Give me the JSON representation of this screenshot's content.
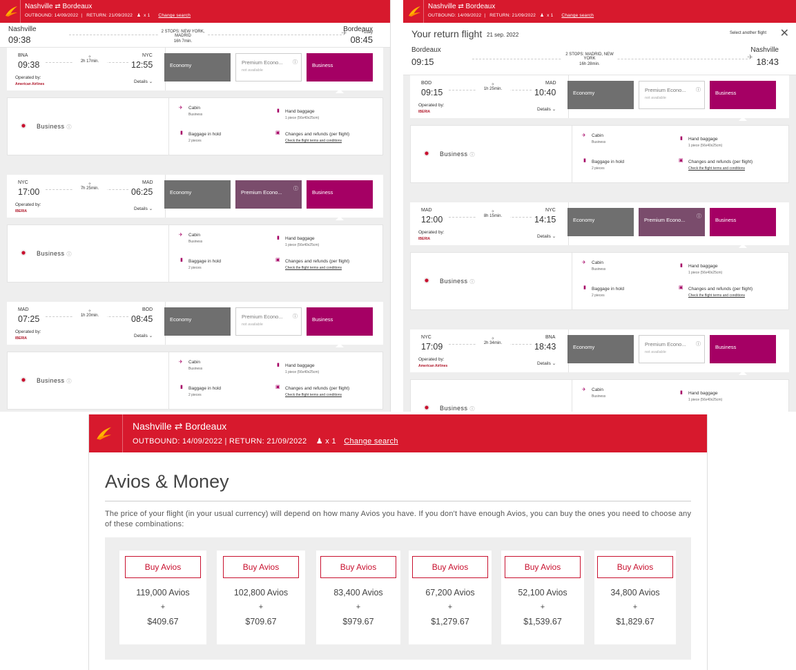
{
  "header": {
    "route": "Nashville ⇄ Bordeaux",
    "outbound": "OUTBOUND: 14/09/2022",
    "return": "RETURN: 21/09/2022",
    "pax": "x 1",
    "change": "Change search"
  },
  "outbound": {
    "from_city": "Nashville",
    "from_time": "09:38",
    "stops": "2 STOPS: NEW YORK, MADRID",
    "total": "16h 7min.",
    "to_city": "Bordeaux",
    "to_time": "08:45",
    "plus_day": "+1day",
    "segments": [
      {
        "c1": "BNA",
        "t1": "09:38",
        "dur": "2h 17min.",
        "c2": "NYC",
        "t2": "12:55",
        "op_label": "Operated by:",
        "op": "American Airlines",
        "details": "Details",
        "eco": "Economy",
        "prem": "Premium Econo...",
        "prem_na": "not available",
        "bus": "Business"
      },
      {
        "c1": "NYC",
        "t1": "17:00",
        "dur": "7h 25min.",
        "c2": "MAD",
        "t2": "06:25",
        "op_label": "Operated by:",
        "op": "IBERIA",
        "details": "Details",
        "eco": "Economy",
        "prem": "Premium Econo...",
        "prem_na": "",
        "bus": "Business"
      },
      {
        "c1": "MAD",
        "t1": "07:25",
        "dur": "1h 20min.",
        "c2": "BOD",
        "t2": "08:45",
        "op_label": "Operated by:",
        "op": "IBERIA",
        "details": "Details",
        "eco": "Economy",
        "prem": "Premium Econo...",
        "prem_na": "not available",
        "bus": "Business"
      }
    ]
  },
  "fare_box": {
    "class": "Business",
    "cabin": "Cabin",
    "cabin_sub": "Business",
    "hand": "Hand baggage",
    "hand_sub": "1 piece (56x40x25cm)",
    "hold": "Baggage in hold",
    "hold_sub": "2 pieces",
    "changes": "Changes and refunds (per flight)",
    "terms": "Check the flight terms and conditions"
  },
  "return_flight": {
    "title": "Your return flight",
    "date": "21 sep. 2022",
    "select_other": "Select another flight",
    "from_city": "Bordeaux",
    "from_time": "09:15",
    "stops": "2 STOPS: MADRID, NEW YORK",
    "total": "16h 28min.",
    "to_city": "Nashville",
    "to_time": "18:43",
    "segments": [
      {
        "c1": "BOD",
        "t1": "09:15",
        "dur": "1h 25min.",
        "c2": "MAD",
        "t2": "10:40",
        "op_label": "Operated by:",
        "op": "IBERIA",
        "details": "Details",
        "eco": "Economy",
        "prem": "Premium Econo...",
        "prem_na": "not available",
        "bus": "Business"
      },
      {
        "c1": "MAD",
        "t1": "12:00",
        "dur": "8h 15min.",
        "c2": "NYC",
        "t2": "14:15",
        "op_label": "Operated by:",
        "op": "IBERIA",
        "details": "Details",
        "eco": "Economy",
        "prem": "Premium Econo...",
        "prem_na": "",
        "bus": "Business"
      },
      {
        "c1": "NYC",
        "t1": "17:09",
        "dur": "2h 34min.",
        "c2": "BNA",
        "t2": "18:43",
        "op_label": "Operated by:",
        "op": "American Airlines",
        "details": "Details",
        "eco": "Economy",
        "prem": "Premium Econo...",
        "prem_na": "not available",
        "bus": "Business"
      }
    ]
  },
  "avios": {
    "title": "Avios & Money",
    "desc": "The price of your flight (in your usual currency) will depend on how many Avios you have. If you don't have enough Avios, you can buy the ones you need to choose any of these combinations:",
    "buy_label": "Buy Avios",
    "plus": "+",
    "options": [
      {
        "avios": "119,000 Avios",
        "money": "$409.67"
      },
      {
        "avios": "102,800 Avios",
        "money": "$709.67"
      },
      {
        "avios": "83,400 Avios",
        "money": "$979.67"
      },
      {
        "avios": "67,200 Avios",
        "money": "$1,279.67"
      },
      {
        "avios": "52,100 Avios",
        "money": "$1,539.67"
      },
      {
        "avios": "34,800 Avios",
        "money": "$1,829.67"
      }
    ]
  },
  "colors": {
    "brand_red": "#d7192d",
    "business": "#a50064",
    "economy": "#6f6f6f",
    "premium": "#7a4c6c"
  }
}
